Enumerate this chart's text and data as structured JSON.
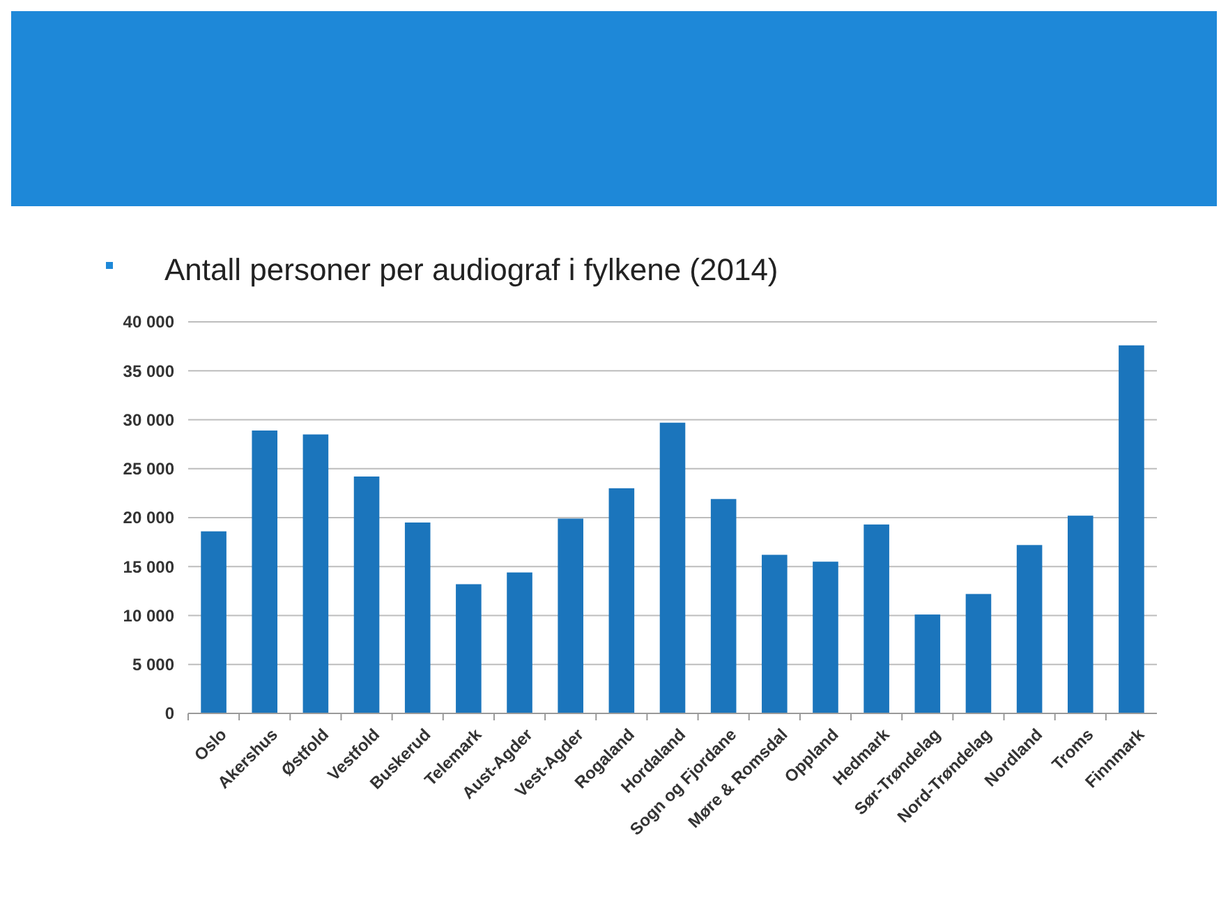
{
  "chart_data": {
    "type": "bar",
    "title": "Antall personer per audiograf i fylkene (2014)",
    "categories": [
      "Oslo",
      "Akershus",
      "Østfold",
      "Vestfold",
      "Buskerud",
      "Telemark",
      "Aust-Agder",
      "Vest-Agder",
      "Rogaland",
      "Hordaland",
      "Sogn og Fjordane",
      "Møre & Romsdal",
      "Oppland",
      "Hedmark",
      "Sør-Trøndelag",
      "Nord-Trøndelag",
      "Nordland",
      "Troms",
      "Finnmark"
    ],
    "values": [
      18600,
      28900,
      28500,
      24200,
      19500,
      13200,
      14400,
      19900,
      23000,
      29700,
      21900,
      16200,
      15500,
      19300,
      10100,
      12200,
      17200,
      20200,
      37600
    ],
    "color": "#1b75bc",
    "ylim": [
      0,
      40000
    ],
    "yticks": [
      0,
      {
        "value": 5000,
        "label": "5 000"
      },
      {
        "value": 10000,
        "label": "10 000"
      },
      {
        "value": 15000,
        "label": "15 000"
      },
      {
        "value": 20000,
        "label": "20 000"
      },
      {
        "value": 25000,
        "label": "25 000"
      },
      {
        "value": 30000,
        "label": "30 000"
      },
      {
        "value": 35000,
        "label": "35 000"
      },
      {
        "value": 40000,
        "label": "40 000"
      }
    ],
    "grid": "y"
  }
}
